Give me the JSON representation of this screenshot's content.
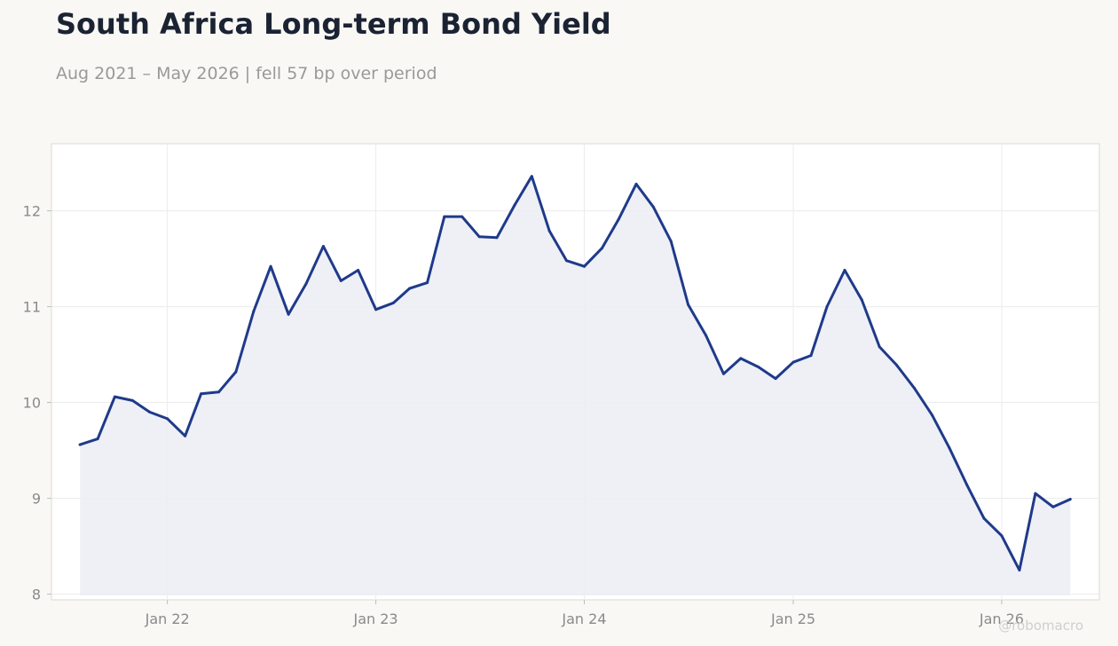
{
  "title": "South Africa Long-term Bond Yield",
  "subtitle": "Aug 2021 – May 2026 | fell 57 bp over period",
  "watermark": "@robomacro",
  "colors": {
    "line": "#1f3a8a",
    "fill": "#eceef5",
    "background": "#f9f8f5",
    "plot_background": "#ffffff",
    "grid": "#ececec"
  },
  "chart_data": {
    "type": "area",
    "title": "South Africa Long-term Bond Yield",
    "xlabel": "",
    "ylabel": "",
    "grid": true,
    "xlim": [
      "2021-06-12",
      "2026-06-21"
    ],
    "ylim": [
      7.94,
      12.7
    ],
    "x_ticks": [
      {
        "date": "2022-01-01",
        "label": "Jan 22"
      },
      {
        "date": "2023-01-01",
        "label": "Jan 23"
      },
      {
        "date": "2024-01-01",
        "label": "Jan 24"
      },
      {
        "date": "2025-01-01",
        "label": "Jan 25"
      },
      {
        "date": "2026-01-01",
        "label": "Jan 26"
      }
    ],
    "y_ticks": [
      8,
      9,
      10,
      11,
      12
    ],
    "series": [
      {
        "x": [
          "2021-08-01",
          "2021-09-01",
          "2021-10-01",
          "2021-11-01",
          "2021-12-01",
          "2022-01-01",
          "2022-02-01",
          "2022-03-01",
          "2022-04-01",
          "2022-05-01",
          "2022-06-01",
          "2022-07-01",
          "2022-08-01",
          "2022-09-01",
          "2022-10-01",
          "2022-11-01",
          "2022-12-01",
          "2023-01-01",
          "2023-02-01",
          "2023-03-01",
          "2023-04-01",
          "2023-05-01",
          "2023-06-01",
          "2023-07-01",
          "2023-08-01",
          "2023-09-01",
          "2023-10-01",
          "2023-11-01",
          "2023-12-01",
          "2024-01-01",
          "2024-02-01",
          "2024-03-01",
          "2024-04-01",
          "2024-05-01",
          "2024-06-01",
          "2024-07-01",
          "2024-08-01",
          "2024-09-01",
          "2024-10-01",
          "2024-11-01",
          "2024-12-01",
          "2025-01-01",
          "2025-02-01",
          "2025-03-01",
          "2025-04-01",
          "2025-05-01",
          "2025-06-01",
          "2025-07-01",
          "2025-08-01",
          "2025-09-01",
          "2025-10-01",
          "2025-11-01",
          "2025-12-01",
          "2026-01-01",
          "2026-02-01",
          "2026-03-01",
          "2026-04-01",
          "2026-05-01"
        ],
        "values": [
          9.56,
          9.62,
          10.06,
          10.02,
          9.9,
          9.83,
          9.65,
          10.09,
          10.11,
          10.32,
          10.95,
          11.42,
          10.92,
          11.24,
          11.63,
          11.27,
          11.38,
          10.97,
          11.04,
          11.19,
          11.25,
          11.94,
          11.94,
          11.73,
          11.72,
          12.06,
          12.36,
          11.79,
          11.48,
          11.42,
          11.61,
          11.91,
          12.28,
          12.04,
          11.68,
          11.02,
          10.7,
          10.3,
          10.46,
          10.37,
          10.25,
          10.42,
          10.49,
          11.0,
          11.38,
          11.07,
          10.58,
          10.39,
          10.15,
          9.87,
          9.53,
          9.14,
          8.79,
          8.61,
          8.25,
          9.05,
          8.91,
          8.99
        ]
      }
    ]
  }
}
